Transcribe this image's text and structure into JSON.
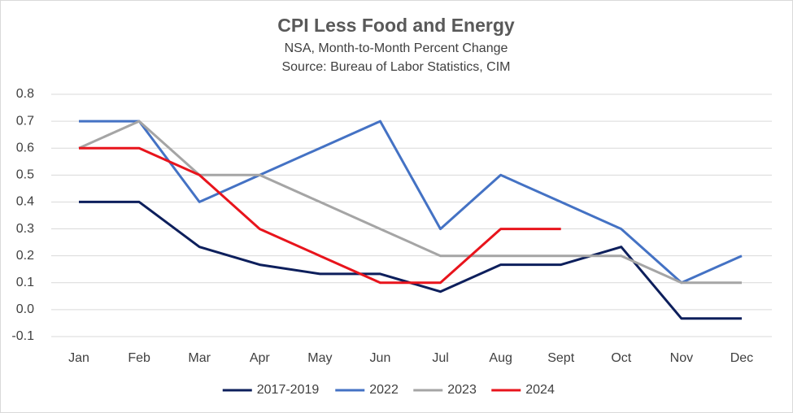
{
  "chart_data": {
    "type": "line",
    "title": "CPI Less Food and Energy",
    "subtitle": [
      "NSA, Month-to-Month Percent Change",
      "Source: Bureau of Labor Statistics, CIM"
    ],
    "categories": [
      "Jan",
      "Feb",
      "Mar",
      "Apr",
      "May",
      "Jun",
      "Jul",
      "Aug",
      "Sept",
      "Oct",
      "Nov",
      "Dec"
    ],
    "series": [
      {
        "name": "2017-2019",
        "color": "#0d1f5c",
        "values": [
          0.4,
          0.4,
          0.233,
          0.167,
          0.133,
          0.133,
          0.067,
          0.167,
          0.167,
          0.233,
          -0.033,
          -0.033
        ]
      },
      {
        "name": "2022",
        "color": "#4472c4",
        "values": [
          0.7,
          0.7,
          0.4,
          0.5,
          0.6,
          0.7,
          0.3,
          0.5,
          0.4,
          0.3,
          0.1,
          0.2
        ]
      },
      {
        "name": "2023",
        "color": "#a5a5a5",
        "values": [
          0.6,
          0.7,
          0.5,
          0.5,
          0.4,
          0.3,
          0.2,
          0.2,
          0.2,
          0.2,
          0.1,
          0.1
        ]
      },
      {
        "name": "2024",
        "color": "#e8141c",
        "values": [
          0.6,
          0.6,
          0.5,
          0.3,
          0.2,
          0.1,
          0.1,
          0.3,
          0.3,
          null,
          null,
          null
        ]
      }
    ],
    "ylim": [
      -0.1,
      0.8
    ],
    "yticks": [
      0.8,
      0.7,
      0.6,
      0.5,
      0.4,
      0.3,
      0.2,
      0.1,
      {
        "value": 0,
        "label": "0.0"
      },
      -0.1
    ],
    "grid": true,
    "legend": "bottom"
  }
}
